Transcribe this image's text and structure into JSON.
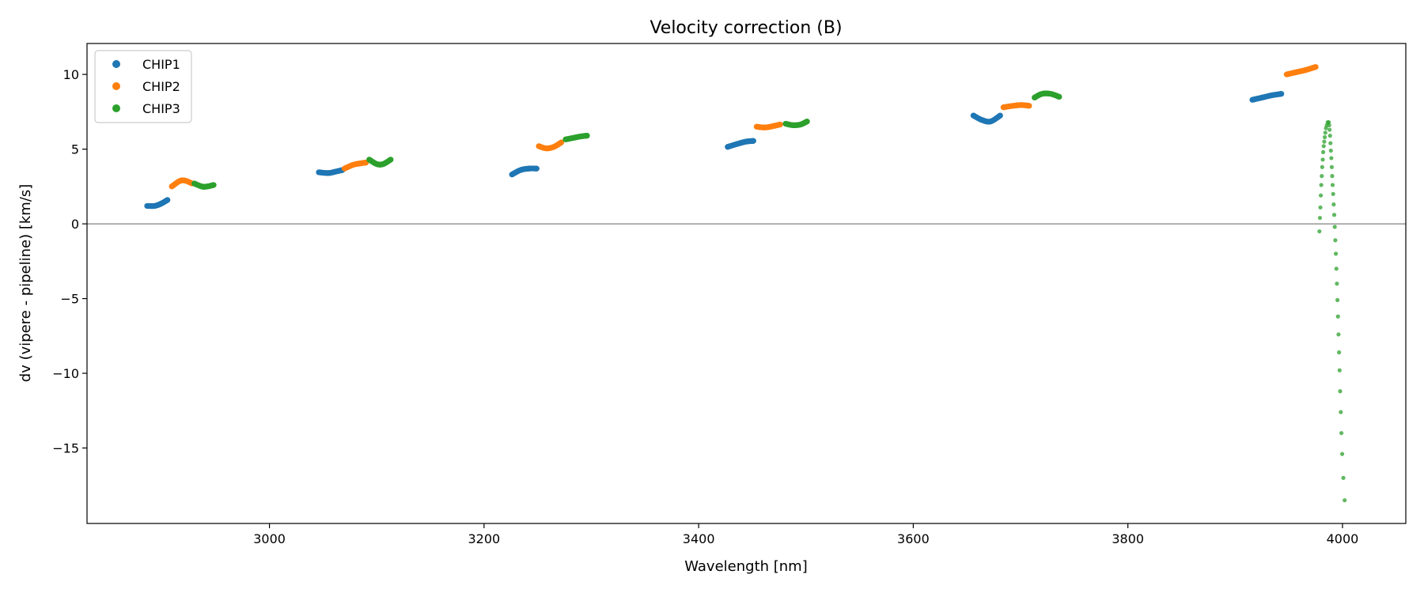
{
  "chart_data": {
    "type": "scatter",
    "title": "Velocity correction (B)",
    "xlabel": "Wavelength [nm]",
    "ylabel": "dv (vipere - pipeline) [km/s]",
    "xlim": [
      2830,
      4059
    ],
    "ylim": [
      -20.05,
      12.07
    ],
    "xticks": [
      3000,
      3200,
      3400,
      3600,
      3800,
      4000
    ],
    "xtick_labels": [
      "3000",
      "3200",
      "3400",
      "3600",
      "3800",
      "4000"
    ],
    "yticks": [
      10,
      5,
      0,
      -5,
      -10,
      -15
    ],
    "ytick_labels": [
      "10",
      "5",
      "0",
      "−5",
      "−10",
      "−15"
    ],
    "hline": 0,
    "grid": false,
    "legend_placement": "top-left",
    "colors": {
      "CHIP1": "#1f77b4",
      "CHIP2": "#ff7f0e",
      "CHIP3": "#2ca02c",
      "hline": "#808080"
    },
    "series": [
      {
        "name": "CHIP1",
        "segments": [
          [
            [
              2886,
              1.2
            ],
            [
              2893,
              1.2
            ],
            [
              2899,
              1.35
            ],
            [
              2905,
              1.6
            ]
          ],
          [
            [
              3046,
              3.45
            ],
            [
              3055,
              3.4
            ],
            [
              3062,
              3.5
            ],
            [
              3068,
              3.6
            ]
          ],
          [
            [
              3226,
              3.3
            ],
            [
              3234,
              3.6
            ],
            [
              3242,
              3.7
            ],
            [
              3249,
              3.7
            ]
          ],
          [
            [
              3427,
              5.15
            ],
            [
              3436,
              5.35
            ],
            [
              3444,
              5.5
            ],
            [
              3451,
              5.55
            ]
          ],
          [
            [
              3656,
              7.25
            ],
            [
              3664,
              6.95
            ],
            [
              3672,
              6.85
            ],
            [
              3681,
              7.25
            ]
          ],
          [
            [
              3916,
              8.3
            ],
            [
              3925,
              8.45
            ],
            [
              3934,
              8.6
            ],
            [
              3943,
              8.7
            ]
          ]
        ]
      },
      {
        "name": "CHIP2",
        "segments": [
          [
            [
              2909,
              2.5
            ],
            [
              2916,
              2.85
            ],
            [
              2921,
              2.9
            ],
            [
              2928,
              2.7
            ]
          ],
          [
            [
              3070,
              3.7
            ],
            [
              3078,
              3.95
            ],
            [
              3085,
              4.05
            ],
            [
              3090,
              4.1
            ]
          ],
          [
            [
              3251,
              5.2
            ],
            [
              3258,
              5.05
            ],
            [
              3265,
              5.15
            ],
            [
              3272,
              5.45
            ]
          ],
          [
            [
              3454,
              6.5
            ],
            [
              3462,
              6.45
            ],
            [
              3470,
              6.55
            ],
            [
              3476,
              6.65
            ]
          ],
          [
            [
              3684,
              7.8
            ],
            [
              3693,
              7.9
            ],
            [
              3701,
              7.95
            ],
            [
              3708,
              7.9
            ]
          ],
          [
            [
              3948,
              10.0
            ],
            [
              3957,
              10.15
            ],
            [
              3966,
              10.3
            ],
            [
              3975,
              10.5
            ]
          ]
        ]
      },
      {
        "name": "CHIP3",
        "segments": [
          [
            [
              2930,
              2.7
            ],
            [
              2937,
              2.5
            ],
            [
              2942,
              2.5
            ],
            [
              2948,
              2.6
            ]
          ],
          [
            [
              3093,
              4.3
            ],
            [
              3100,
              4.0
            ],
            [
              3106,
              4.0
            ],
            [
              3113,
              4.3
            ]
          ],
          [
            [
              3276,
              5.65
            ],
            [
              3283,
              5.75
            ],
            [
              3290,
              5.85
            ],
            [
              3296,
              5.9
            ]
          ],
          [
            [
              3481,
              6.7
            ],
            [
              3488,
              6.6
            ],
            [
              3495,
              6.65
            ],
            [
              3501,
              6.85
            ]
          ],
          [
            [
              3713,
              8.45
            ],
            [
              3720,
              8.7
            ],
            [
              3728,
              8.7
            ],
            [
              3736,
              8.5
            ]
          ]
        ],
        "sparse_points": {
          "x": [
            3978.5,
            3979.0,
            3979.4,
            3979.8,
            3980.2,
            3980.7,
            3981.1,
            3981.6,
            3982.0,
            3982.5,
            3983.0,
            3983.5,
            3984.0,
            3984.6,
            3985.3,
            3986.2,
            3987.2,
            3987.6,
            3988.0,
            3988.4,
            3988.8,
            3989.2,
            3989.6,
            3990.0,
            3990.4,
            3990.8,
            3991.3,
            3991.8,
            3992.3,
            3992.8,
            3993.3,
            3993.8,
            3994.3,
            3994.8,
            3995.3,
            3995.8,
            3996.3,
            3996.8,
            3997.3,
            3997.8,
            3998.4,
            3999.0,
            3999.7,
            4000.8,
            4002.0
          ],
          "y": [
            -0.5,
            0.4,
            1.1,
            1.9,
            2.6,
            3.2,
            3.8,
            4.3,
            4.8,
            5.2,
            5.5,
            5.8,
            6.1,
            6.4,
            6.6,
            6.8,
            6.8,
            6.6,
            6.3,
            5.9,
            5.4,
            4.9,
            4.4,
            3.8,
            3.2,
            2.6,
            2.0,
            1.3,
            0.6,
            -0.2,
            -1.1,
            -2.0,
            -3.0,
            -4.0,
            -5.1,
            -6.2,
            -7.4,
            -8.6,
            -9.8,
            -11.2,
            -12.6,
            -14.0,
            -15.4,
            -17.0,
            -18.5
          ]
        }
      }
    ]
  }
}
